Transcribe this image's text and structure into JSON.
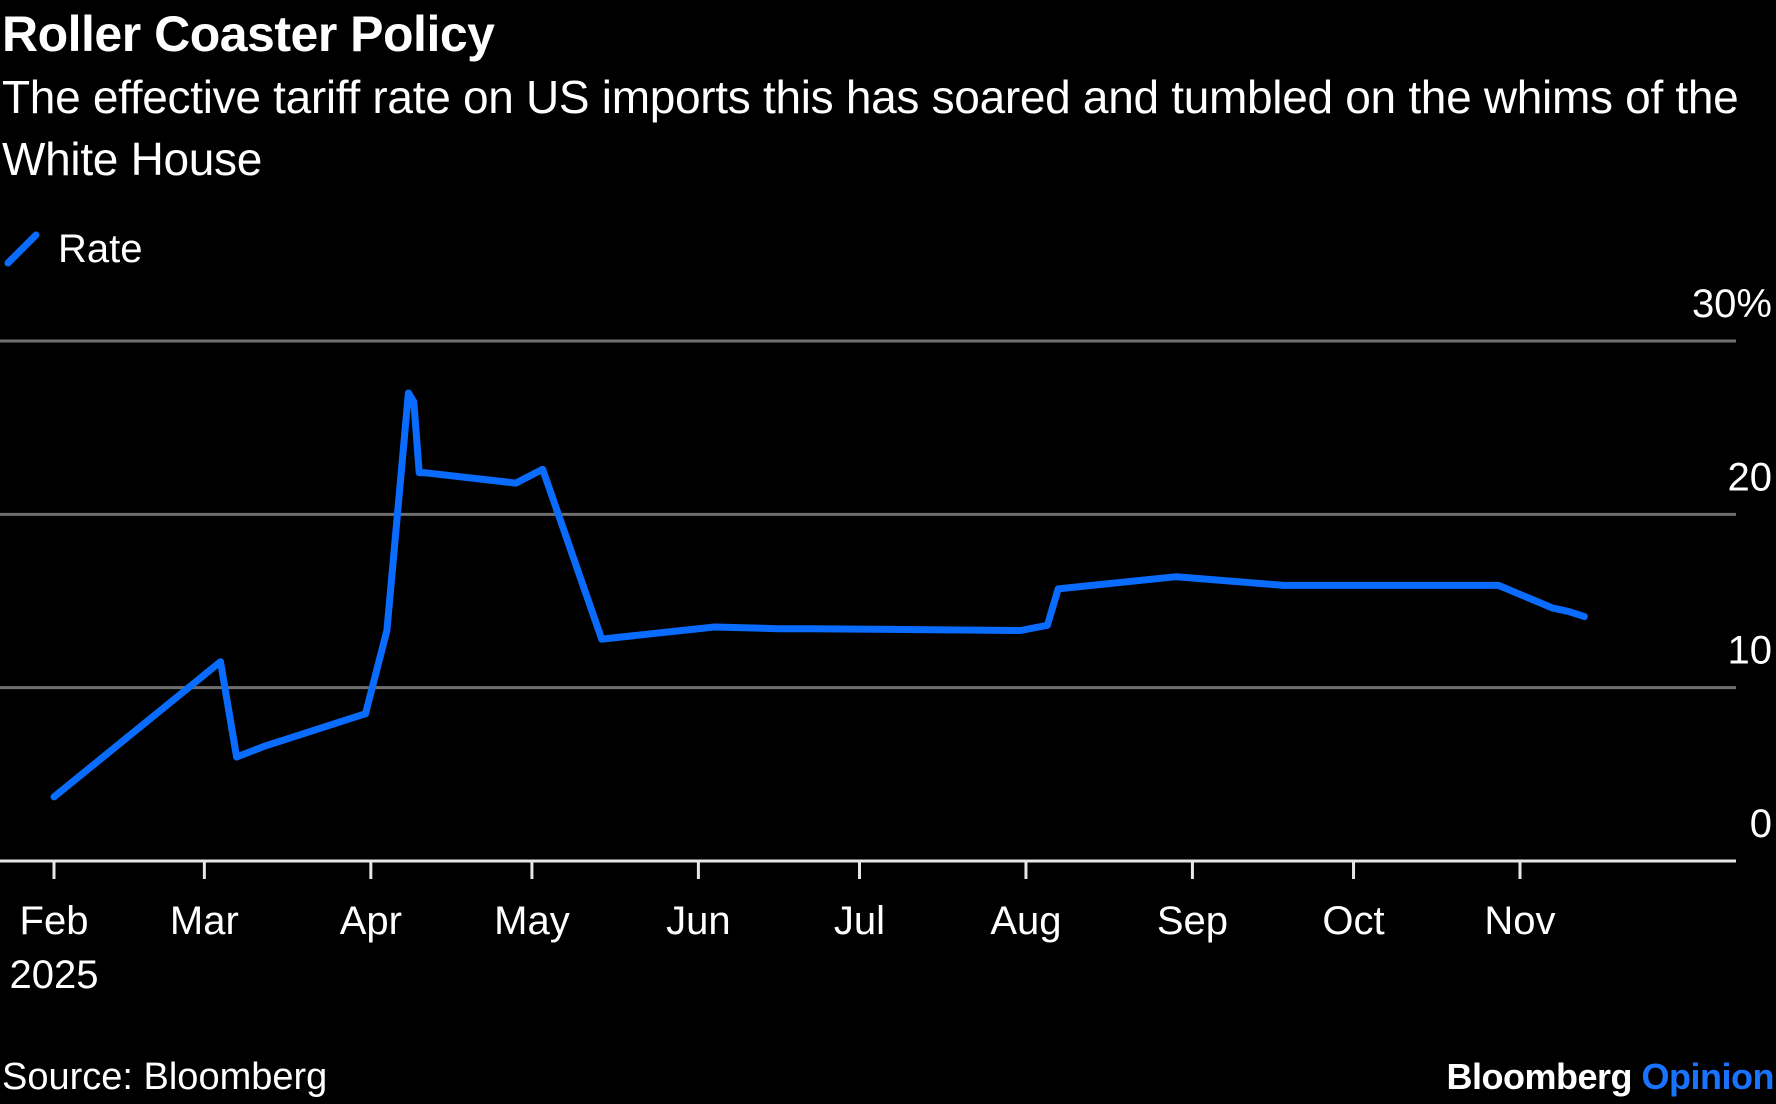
{
  "header": {
    "title": "Roller Coaster Policy",
    "subtitle": "The effective tariff rate on US imports this has soared and tumbled on the whims of the White House"
  },
  "footer": {
    "source": "Source: Bloomberg",
    "brand_primary": "Bloomberg",
    "brand_secondary": "Opinion"
  },
  "colors": {
    "background": "#000000",
    "series": "#0a6cff",
    "grid": "#6f6f6f",
    "brand_accent": "#1a73ff"
  },
  "chart_data": {
    "type": "line",
    "title": "Roller Coaster Policy",
    "subtitle": "The effective tariff rate on US imports this has soared and tumbled on the whims of the White House",
    "xlabel": "",
    "ylabel": "",
    "y_unit": "%",
    "ylim": [
      0,
      30
    ],
    "y_ticks": [
      0,
      10,
      20,
      30
    ],
    "y_tick_labels": [
      "0",
      "10",
      "20",
      "30%"
    ],
    "y_axis_side": "right",
    "grid": true,
    "legend": {
      "placement": "top-left",
      "entries": [
        "Rate"
      ]
    },
    "x_ticks": [
      "2025-02-01",
      "2025-03-01",
      "2025-04-01",
      "2025-05-01",
      "2025-06-01",
      "2025-07-01",
      "2025-08-01",
      "2025-09-01",
      "2025-10-01",
      "2025-11-01"
    ],
    "x_tick_labels": [
      "Feb",
      "Mar",
      "Apr",
      "May",
      "Jun",
      "Jul",
      "Aug",
      "Sep",
      "Oct",
      "Nov"
    ],
    "x_year_label": "2025",
    "series": [
      {
        "name": "Rate",
        "x": [
          "2025-02-01",
          "2025-03-04",
          "2025-03-07",
          "2025-03-12",
          "2025-03-31",
          "2025-04-04",
          "2025-04-08",
          "2025-04-09",
          "2025-04-10",
          "2025-04-11",
          "2025-04-28",
          "2025-05-03",
          "2025-05-14",
          "2025-06-04",
          "2025-06-16",
          "2025-06-22",
          "2025-07-31",
          "2025-08-05",
          "2025-08-07",
          "2025-08-29",
          "2025-09-18",
          "2025-10-28",
          "2025-11-07",
          "2025-11-10",
          "2025-11-13"
        ],
        "values": [
          3.7,
          11.5,
          6.0,
          6.6,
          8.5,
          13.3,
          27.0,
          26.5,
          22.4,
          22.4,
          21.8,
          22.6,
          12.8,
          13.5,
          13.4,
          13.4,
          13.3,
          13.6,
          15.7,
          16.4,
          15.9,
          15.9,
          14.6,
          14.4,
          14.1
        ]
      }
    ]
  }
}
